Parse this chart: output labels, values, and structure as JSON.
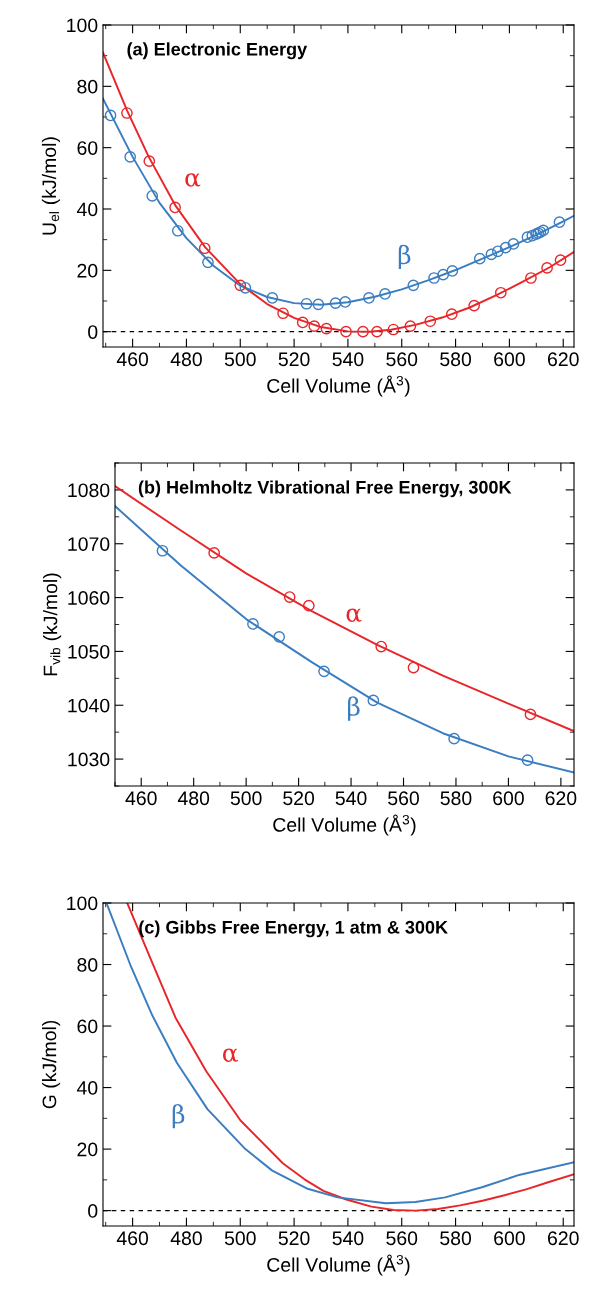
{
  "chart_data": [
    {
      "type": "scatter",
      "title": "(a) Electronic Energy",
      "xlabel": "Cell Volume (Å$^{3}$)",
      "ylabel": "U$_{el}$ (kJ/mol)",
      "xlim": [
        449,
        624
      ],
      "xticks": [
        460,
        480,
        500,
        520,
        540,
        560,
        580,
        600,
        620
      ],
      "ylim": [
        -5,
        100
      ],
      "yticks": [
        0,
        20,
        40,
        60,
        80,
        100
      ],
      "grid": false,
      "legend": false,
      "marker": "circle",
      "ref_lines": [
        {
          "axis": "y",
          "value": 0,
          "color": "#000000",
          "line_style": "dashed"
        }
      ],
      "series": [
        {
          "color": "#e8262a",
          "x": [
            457.9,
            466.2,
            475.8,
            486.8,
            500.0,
            515.9,
            523.2,
            527.5,
            532.0,
            539.3,
            545.6,
            550.8,
            556.9,
            563.2,
            570.6,
            578.6,
            586.9,
            596.8,
            608.0,
            614.0,
            619.0
          ],
          "values": [
            71.3,
            55.6,
            40.5,
            27.2,
            15.1,
            6.0,
            3.0,
            1.8,
            1.0,
            0.0,
            0.0,
            0.0,
            0.7,
            1.8,
            3.4,
            5.7,
            8.5,
            12.7,
            17.5,
            20.8,
            23.3
          ]
        },
        {
          "type": "line",
          "name": "α",
          "color": "#e8262a",
          "marker": "none",
          "x": [
            449,
            458,
            466,
            476,
            487,
            500,
            510,
            520,
            530,
            540,
            548,
            556,
            565,
            575,
            585,
            595,
            605,
            615,
            624
          ],
          "values": [
            91,
            72,
            57,
            41,
            27.5,
            15.5,
            9,
            4.5,
            1.5,
            0.1,
            0,
            0.6,
            2.2,
            4.6,
            7.8,
            11.8,
            16.3,
            21,
            26
          ]
        },
        {
          "color": "#3a7dc0",
          "x": [
            451.8,
            459.1,
            467.3,
            476.8,
            488.0,
            501.9,
            511.9,
            524.6,
            529.0,
            535.4,
            539.0,
            547.8,
            553.8,
            564.3,
            572.0,
            575.4,
            578.8,
            589.0,
            593.3,
            595.7,
            598.6,
            601.5,
            606.7,
            608.5,
            609.9,
            610.7,
            611.5,
            612.6,
            618.6
          ],
          "values": [
            70.5,
            57.0,
            44.3,
            32.9,
            22.6,
            14.3,
            11.0,
            9.1,
            8.9,
            9.3,
            9.7,
            11.0,
            12.3,
            15.1,
            17.5,
            18.6,
            19.8,
            23.8,
            25.2,
            26.2,
            27.4,
            28.6,
            30.8,
            31.3,
            31.8,
            32.1,
            32.5,
            33.0,
            35.7
          ]
        },
        {
          "type": "line",
          "name": "β",
          "color": "#3a7dc0",
          "marker": "none",
          "x": [
            449,
            460,
            470,
            480,
            490,
            500,
            510,
            520,
            530,
            540,
            550,
            560,
            570,
            580,
            590,
            600,
            610,
            620,
            624
          ],
          "values": [
            76,
            57,
            42,
            30.5,
            21.5,
            15,
            11.3,
            9.3,
            8.8,
            9.6,
            11.4,
            13.8,
            16.8,
            20.1,
            23.8,
            27.6,
            31.6,
            36,
            37.8
          ]
        }
      ]
    },
    {
      "type": "scatter",
      "title": "(b) Helmholtz Vibrational Free Energy, 300K",
      "xlabel": "Cell Volume (Å$^{3}$)",
      "ylabel": "F$_{vib}$ (kJ/mol)",
      "xlim": [
        450,
        625
      ],
      "xticks": [
        460,
        480,
        500,
        520,
        540,
        560,
        580,
        600,
        620
      ],
      "ylim": [
        1025,
        1085
      ],
      "yticks": [
        1030,
        1040,
        1050,
        1060,
        1070,
        1080
      ],
      "grid": false,
      "legend": false,
      "marker": "circle",
      "series": [
        {
          "color": "#e8262a",
          "x": [
            487.8,
            516.6,
            523.9,
            551.5,
            563.8,
            608.4
          ],
          "values": [
            1068.3,
            1060.1,
            1058.5,
            1050.9,
            1047.0,
            1038.3
          ]
        },
        {
          "type": "line",
          "name": "α",
          "color": "#e8262a",
          "marker": "none",
          "x": [
            450,
            475,
            500,
            525,
            550,
            575,
            600,
            625
          ],
          "values": [
            1080.7,
            1072.5,
            1064.5,
            1057.5,
            1051.2,
            1045.5,
            1040.3,
            1035.2
          ]
        },
        {
          "color": "#3a7dc0",
          "x": [
            468.1,
            502.6,
            512.6,
            529.7,
            548.5,
            579.3,
            607.3
          ],
          "values": [
            1068.7,
            1055.1,
            1052.7,
            1046.3,
            1040.9,
            1033.8,
            1029.8
          ]
        },
        {
          "type": "line",
          "name": "β",
          "color": "#3a7dc0",
          "marker": "none",
          "x": [
            450,
            475,
            500,
            525,
            550,
            575,
            600,
            625
          ],
          "values": [
            1077,
            1066,
            1056,
            1048,
            1040.5,
            1034.8,
            1030.5,
            1027.5
          ]
        }
      ]
    },
    {
      "type": "line",
      "title": "(c) Gibbs Free Energy, 1 atm & 300K",
      "xlabel": "Cell Volume (Å$^{3}$)",
      "ylabel": "G (kJ/mol)",
      "xlim": [
        449,
        624
      ],
      "xticks": [
        460,
        480,
        500,
        520,
        540,
        560,
        580,
        600,
        620
      ],
      "ylim": [
        -5,
        100
      ],
      "yticks": [
        0,
        20,
        40,
        60,
        80,
        100
      ],
      "grid": false,
      "legend": false,
      "marker": "none",
      "ref_lines": [
        {
          "axis": "y",
          "value": 0,
          "color": "#000000",
          "line_style": "dashed"
        }
      ],
      "series": [
        {
          "name": "α",
          "color": "#e8262a",
          "x": [
            458.0,
            466.7,
            475.9,
            487.3,
            500.1,
            515.8,
            524.0,
            530.9,
            539.1,
            548.7,
            557.0,
            565.2,
            573.5,
            581.7,
            590.0,
            598.2,
            606.5,
            614.7,
            624
          ],
          "values": [
            100,
            81.8,
            62.8,
            45.4,
            29.3,
            15.4,
            10.1,
            6.4,
            3.7,
            1.3,
            0.2,
            0,
            0.5,
            1.7,
            3.2,
            5.0,
            7.0,
            9.3,
            11.8
          ]
        },
        {
          "name": "β",
          "color": "#3a7dc0",
          "x": [
            450.3,
            459.1,
            467.3,
            476.5,
            487.8,
            501.9,
            511.9,
            524.7,
            536.2,
            554.1,
            565.1,
            576.1,
            589.8,
            603.6,
            624
          ],
          "values": [
            100,
            80,
            63.5,
            48.0,
            33.0,
            20.0,
            13.0,
            7.2,
            4.3,
            2.4,
            2.8,
            4.3,
            7.6,
            11.6,
            15.7
          ]
        }
      ]
    }
  ]
}
